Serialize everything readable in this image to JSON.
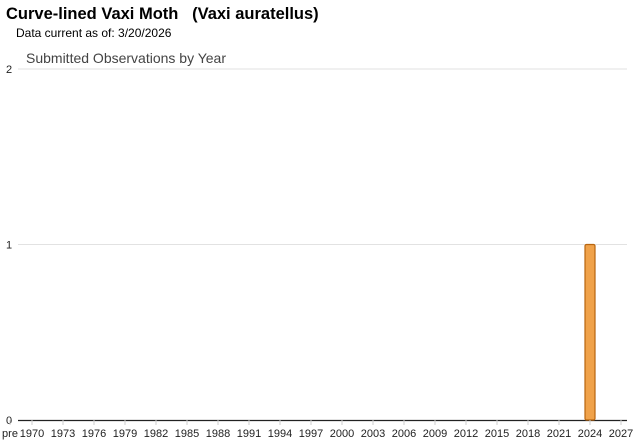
{
  "header": {
    "title": "Curve-lined Vaxi Moth   (Vaxi auratellus)",
    "data_current": "Data current as of: 3/20/2026"
  },
  "chart_data": {
    "type": "bar",
    "title": "Submitted Observations by Year",
    "xlabel": "",
    "ylabel": "",
    "x_tick_labels": [
      "pre",
      "1970",
      "1973",
      "1976",
      "1979",
      "1982",
      "1985",
      "1988",
      "1991",
      "1994",
      "1997",
      "2000",
      "2003",
      "2006",
      "2009",
      "2012",
      "2015",
      "2018",
      "2021",
      "2024",
      "2027"
    ],
    "xlim": [
      1967,
      2027
    ],
    "ylim": [
      0,
      2
    ],
    "y_ticks": [
      0,
      1,
      2
    ],
    "grid": true,
    "bar_color": "#f0a24a",
    "bar_edge_color": "#b8650f",
    "series": [
      {
        "points": [
          {
            "x": 2024,
            "y": 1
          }
        ]
      }
    ]
  }
}
